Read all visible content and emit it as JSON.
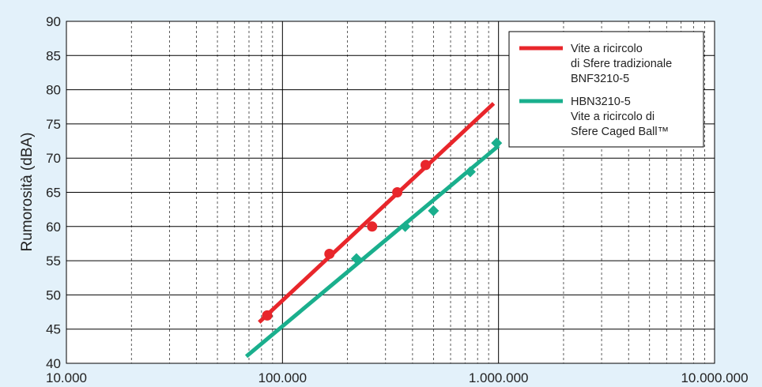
{
  "chart_data": {
    "type": "scatter",
    "title": "",
    "xlabel": "",
    "ylabel": "Rumorosità (dBA)",
    "x_scale": "log",
    "xlim": [
      10000,
      10000000
    ],
    "ylim": [
      40,
      90
    ],
    "x_ticks": [
      10000,
      100000,
      1000000,
      10000000
    ],
    "x_tick_labels": [
      "10.000",
      "100.000",
      "1.000.000",
      "10.000.000"
    ],
    "y_ticks": [
      40,
      45,
      50,
      55,
      60,
      65,
      70,
      75,
      80,
      85,
      90
    ],
    "y_tick_labels": [
      "40",
      "45",
      "50",
      "55",
      "60",
      "65",
      "70",
      "75",
      "80",
      "85",
      "90"
    ],
    "grid": true,
    "legend_position": "top-right",
    "series": [
      {
        "name_lines": [
          "Vite a ricircolo",
          "di Sfere tradizionale",
          "BNF3210-5"
        ],
        "color": "#e8262b",
        "marker": "circle",
        "points": [
          {
            "x": 85000,
            "y": 47
          },
          {
            "x": 165000,
            "y": 56
          },
          {
            "x": 260000,
            "y": 60
          },
          {
            "x": 340000,
            "y": 65
          },
          {
            "x": 460000,
            "y": 69
          }
        ],
        "trend_line": [
          {
            "x": 78000,
            "y": 46
          },
          {
            "x": 950000,
            "y": 78
          }
        ]
      },
      {
        "name_lines": [
          "HBN3210-5",
          "Vite a ricircolo di",
          "Sfere Caged Ball™"
        ],
        "color": "#1aaf8d",
        "marker": "diamond",
        "points": [
          {
            "x": 220000,
            "y": 55.3
          },
          {
            "x": 370000,
            "y": 60
          },
          {
            "x": 500000,
            "y": 62.3
          },
          {
            "x": 740000,
            "y": 68
          },
          {
            "x": 980000,
            "y": 72.2
          }
        ],
        "trend_line": [
          {
            "x": 68000,
            "y": 41
          },
          {
            "x": 1000000,
            "y": 71.8
          }
        ]
      }
    ]
  }
}
